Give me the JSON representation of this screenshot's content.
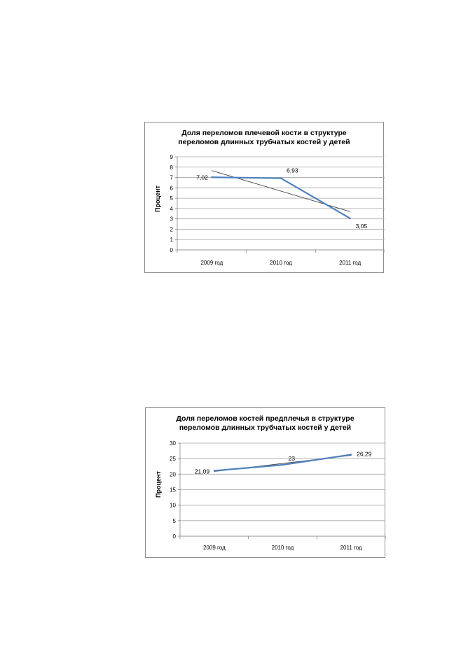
{
  "chart_data": [
    {
      "type": "line",
      "title": "Доля переломов плечевой кости в структуре\nпереломов длинных трубчатых костей у детей",
      "xlabel": "",
      "ylabel": "Процент",
      "categories": [
        "2009 год",
        "2010 год",
        "2011 год"
      ],
      "ylim": [
        0,
        9
      ],
      "yticks": [
        0,
        1,
        2,
        3,
        4,
        5,
        6,
        7,
        8,
        9
      ],
      "series": [
        {
          "values": [
            7.02,
            6.93,
            3.05
          ],
          "labels": [
            "7,02",
            "6,93",
            "3,05"
          ],
          "color": "#4f81bd"
        }
      ],
      "trendline": {
        "values": [
          7.67,
          5.68,
          3.7
        ],
        "color": "#404040"
      },
      "grid": true,
      "legend": "none"
    },
    {
      "type": "line",
      "title": "Доля переломов костей предплечья в структуре\nпереломов длинных трубчатых костей у детей",
      "xlabel": "",
      "ylabel": "Процент",
      "categories": [
        "2009 год",
        "2010 год",
        "2011 год"
      ],
      "ylim": [
        0,
        30
      ],
      "yticks": [
        0,
        5,
        10,
        15,
        20,
        25,
        30
      ],
      "series": [
        {
          "values": [
            21.09,
            23,
            26.29
          ],
          "labels": [
            "21,09",
            "23",
            "26,29"
          ],
          "color": "#4f81bd"
        }
      ],
      "trendline": {
        "values": [
          20.85,
          23.45,
          26.05
        ],
        "color": "#404040"
      },
      "grid": true,
      "legend": "none"
    }
  ]
}
